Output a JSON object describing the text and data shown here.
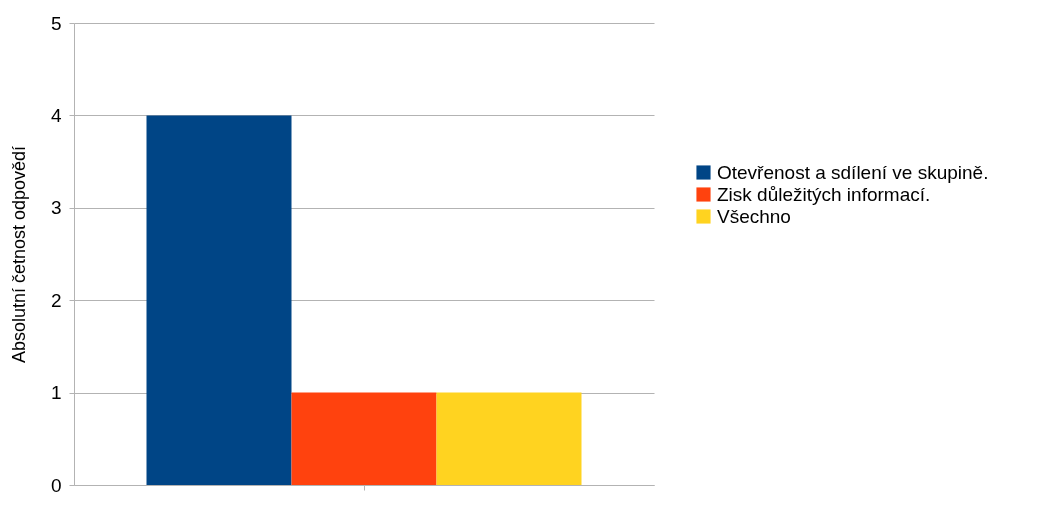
{
  "chart_data": {
    "type": "bar",
    "ylabel": "Absolutní četnost odpovědí",
    "categories": [
      null
    ],
    "series": [
      {
        "name": "Otevřenost a sdílení ve skupině.",
        "color": "#004586",
        "values": [
          4
        ]
      },
      {
        "name": "Zisk důležitých informací.",
        "color": "#ff420e",
        "values": [
          1
        ]
      },
      {
        "name": "Všechno",
        "color": "#ffd320",
        "values": [
          1
        ]
      }
    ],
    "ylim": [
      0,
      5
    ],
    "yticks": [
      0,
      1,
      2,
      3,
      4,
      5
    ],
    "grid": "y",
    "legend": "right"
  }
}
